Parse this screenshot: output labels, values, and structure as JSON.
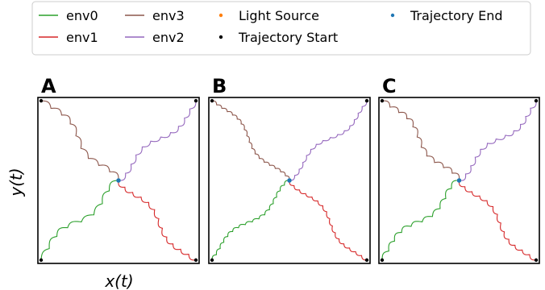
{
  "legend": {
    "items": [
      {
        "label": "env0",
        "kind": "line",
        "color": "#2ca02c"
      },
      {
        "label": "env1",
        "kind": "line",
        "color": "#d62728"
      },
      {
        "label": "env2",
        "kind": "line",
        "color": "#9467bd"
      },
      {
        "label": "env3",
        "kind": "line",
        "color": "#8c564b"
      },
      {
        "label": "Light Source",
        "kind": "marker",
        "color": "#ff7f0e"
      },
      {
        "label": "Trajectory Start",
        "kind": "marker",
        "color": "#000000"
      },
      {
        "label": "Trajectory End",
        "kind": "marker",
        "color": "#1f77b4"
      }
    ]
  },
  "xlabel": "x(t)",
  "ylabel": "y(t)",
  "chart_data": [
    {
      "type": "line",
      "panel_label": "A",
      "xlim": [
        0,
        1
      ],
      "ylim": [
        0,
        1
      ],
      "grid": false,
      "legend_placement": "top",
      "light_source": [
        0.5,
        0.5
      ],
      "series": [
        {
          "name": "env0",
          "color": "#2ca02c",
          "start": [
            0.02,
            0.02
          ],
          "end": [
            0.5,
            0.5
          ],
          "bumps": 8,
          "amp": 0.022
        },
        {
          "name": "env1",
          "color": "#d62728",
          "start": [
            0.98,
            0.02
          ],
          "end": [
            0.5,
            0.5
          ],
          "bumps": 12,
          "amp": 0.018
        },
        {
          "name": "env2",
          "color": "#9467bd",
          "start": [
            0.98,
            0.98
          ],
          "end": [
            0.5,
            0.5
          ],
          "bumps": 11,
          "amp": 0.018
        },
        {
          "name": "env3",
          "color": "#8c564b",
          "start": [
            0.02,
            0.98
          ],
          "end": [
            0.5,
            0.5
          ],
          "bumps": 9,
          "amp": 0.022
        }
      ]
    },
    {
      "type": "line",
      "panel_label": "B",
      "xlim": [
        0,
        1
      ],
      "ylim": [
        0,
        1
      ],
      "grid": false,
      "legend_placement": "top",
      "light_source": [
        0.5,
        0.5
      ],
      "series": [
        {
          "name": "env0",
          "color": "#2ca02c",
          "start": [
            0.02,
            0.02
          ],
          "end": [
            0.5,
            0.5
          ],
          "bumps": 16,
          "amp": 0.012
        },
        {
          "name": "env1",
          "color": "#d62728",
          "start": [
            0.98,
            0.02
          ],
          "end": [
            0.5,
            0.5
          ],
          "bumps": 16,
          "amp": 0.012
        },
        {
          "name": "env2",
          "color": "#9467bd",
          "start": [
            0.98,
            0.98
          ],
          "end": [
            0.5,
            0.5
          ],
          "bumps": 15,
          "amp": 0.012
        },
        {
          "name": "env3",
          "color": "#8c564b",
          "start": [
            0.02,
            0.98
          ],
          "end": [
            0.5,
            0.5
          ],
          "bumps": 18,
          "amp": 0.011
        }
      ]
    },
    {
      "type": "line",
      "panel_label": "C",
      "xlim": [
        0,
        1
      ],
      "ylim": [
        0,
        1
      ],
      "grid": false,
      "legend_placement": "top",
      "light_source": [
        0.5,
        0.5
      ],
      "series": [
        {
          "name": "env0",
          "color": "#2ca02c",
          "start": [
            0.02,
            0.02
          ],
          "end": [
            0.5,
            0.5
          ],
          "bumps": 10,
          "amp": 0.02
        },
        {
          "name": "env1",
          "color": "#d62728",
          "start": [
            0.98,
            0.02
          ],
          "end": [
            0.5,
            0.5
          ],
          "bumps": 13,
          "amp": 0.016
        },
        {
          "name": "env2",
          "color": "#9467bd",
          "start": [
            0.98,
            0.98
          ],
          "end": [
            0.5,
            0.5
          ],
          "bumps": 12,
          "amp": 0.018
        },
        {
          "name": "env3",
          "color": "#8c564b",
          "start": [
            0.02,
            0.98
          ],
          "end": [
            0.5,
            0.5
          ],
          "bumps": 11,
          "amp": 0.02
        }
      ]
    }
  ]
}
